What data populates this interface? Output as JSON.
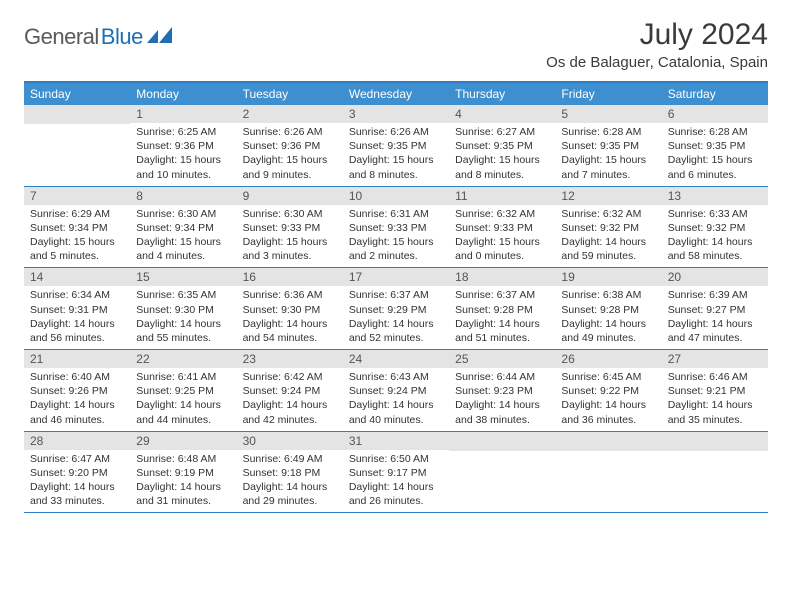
{
  "brand": {
    "text1": "General",
    "text2": "Blue"
  },
  "title": "July 2024",
  "location": "Os de Balaguer, Catalonia, Spain",
  "colors": {
    "header_bar": "#3d8fcf",
    "rule": "#2f7ec2",
    "datenum_bg": "#e4e4e4",
    "text": "#333333",
    "logo_blue": "#1f6fb2"
  },
  "day_names": [
    "Sunday",
    "Monday",
    "Tuesday",
    "Wednesday",
    "Thursday",
    "Friday",
    "Saturday"
  ],
  "calendar": {
    "first_weekday_index": 1,
    "days_in_month": 31,
    "days": [
      {
        "n": 1,
        "sunrise": "6:25 AM",
        "sunset": "9:36 PM",
        "daylight": "15 hours and 10 minutes."
      },
      {
        "n": 2,
        "sunrise": "6:26 AM",
        "sunset": "9:36 PM",
        "daylight": "15 hours and 9 minutes."
      },
      {
        "n": 3,
        "sunrise": "6:26 AM",
        "sunset": "9:35 PM",
        "daylight": "15 hours and 8 minutes."
      },
      {
        "n": 4,
        "sunrise": "6:27 AM",
        "sunset": "9:35 PM",
        "daylight": "15 hours and 8 minutes."
      },
      {
        "n": 5,
        "sunrise": "6:28 AM",
        "sunset": "9:35 PM",
        "daylight": "15 hours and 7 minutes."
      },
      {
        "n": 6,
        "sunrise": "6:28 AM",
        "sunset": "9:35 PM",
        "daylight": "15 hours and 6 minutes."
      },
      {
        "n": 7,
        "sunrise": "6:29 AM",
        "sunset": "9:34 PM",
        "daylight": "15 hours and 5 minutes."
      },
      {
        "n": 8,
        "sunrise": "6:30 AM",
        "sunset": "9:34 PM",
        "daylight": "15 hours and 4 minutes."
      },
      {
        "n": 9,
        "sunrise": "6:30 AM",
        "sunset": "9:33 PM",
        "daylight": "15 hours and 3 minutes."
      },
      {
        "n": 10,
        "sunrise": "6:31 AM",
        "sunset": "9:33 PM",
        "daylight": "15 hours and 2 minutes."
      },
      {
        "n": 11,
        "sunrise": "6:32 AM",
        "sunset": "9:33 PM",
        "daylight": "15 hours and 0 minutes."
      },
      {
        "n": 12,
        "sunrise": "6:32 AM",
        "sunset": "9:32 PM",
        "daylight": "14 hours and 59 minutes."
      },
      {
        "n": 13,
        "sunrise": "6:33 AM",
        "sunset": "9:32 PM",
        "daylight": "14 hours and 58 minutes."
      },
      {
        "n": 14,
        "sunrise": "6:34 AM",
        "sunset": "9:31 PM",
        "daylight": "14 hours and 56 minutes."
      },
      {
        "n": 15,
        "sunrise": "6:35 AM",
        "sunset": "9:30 PM",
        "daylight": "14 hours and 55 minutes."
      },
      {
        "n": 16,
        "sunrise": "6:36 AM",
        "sunset": "9:30 PM",
        "daylight": "14 hours and 54 minutes."
      },
      {
        "n": 17,
        "sunrise": "6:37 AM",
        "sunset": "9:29 PM",
        "daylight": "14 hours and 52 minutes."
      },
      {
        "n": 18,
        "sunrise": "6:37 AM",
        "sunset": "9:28 PM",
        "daylight": "14 hours and 51 minutes."
      },
      {
        "n": 19,
        "sunrise": "6:38 AM",
        "sunset": "9:28 PM",
        "daylight": "14 hours and 49 minutes."
      },
      {
        "n": 20,
        "sunrise": "6:39 AM",
        "sunset": "9:27 PM",
        "daylight": "14 hours and 47 minutes."
      },
      {
        "n": 21,
        "sunrise": "6:40 AM",
        "sunset": "9:26 PM",
        "daylight": "14 hours and 46 minutes."
      },
      {
        "n": 22,
        "sunrise": "6:41 AM",
        "sunset": "9:25 PM",
        "daylight": "14 hours and 44 minutes."
      },
      {
        "n": 23,
        "sunrise": "6:42 AM",
        "sunset": "9:24 PM",
        "daylight": "14 hours and 42 minutes."
      },
      {
        "n": 24,
        "sunrise": "6:43 AM",
        "sunset": "9:24 PM",
        "daylight": "14 hours and 40 minutes."
      },
      {
        "n": 25,
        "sunrise": "6:44 AM",
        "sunset": "9:23 PM",
        "daylight": "14 hours and 38 minutes."
      },
      {
        "n": 26,
        "sunrise": "6:45 AM",
        "sunset": "9:22 PM",
        "daylight": "14 hours and 36 minutes."
      },
      {
        "n": 27,
        "sunrise": "6:46 AM",
        "sunset": "9:21 PM",
        "daylight": "14 hours and 35 minutes."
      },
      {
        "n": 28,
        "sunrise": "6:47 AM",
        "sunset": "9:20 PM",
        "daylight": "14 hours and 33 minutes."
      },
      {
        "n": 29,
        "sunrise": "6:48 AM",
        "sunset": "9:19 PM",
        "daylight": "14 hours and 31 minutes."
      },
      {
        "n": 30,
        "sunrise": "6:49 AM",
        "sunset": "9:18 PM",
        "daylight": "14 hours and 29 minutes."
      },
      {
        "n": 31,
        "sunrise": "6:50 AM",
        "sunset": "9:17 PM",
        "daylight": "14 hours and 26 minutes."
      }
    ]
  },
  "labels": {
    "sunrise": "Sunrise:",
    "sunset": "Sunset:",
    "daylight": "Daylight:"
  }
}
